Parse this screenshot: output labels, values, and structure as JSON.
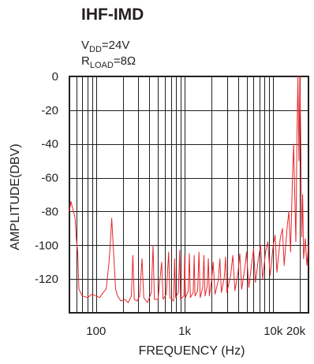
{
  "chart_data": {
    "type": "line",
    "title": "IHF-IMD",
    "conditions": {
      "vdd_main": "V",
      "vdd_sub": "DD",
      "vdd_value": "=24V",
      "rload_main": "R",
      "rload_sub": "LOAD",
      "rload_value": "=8Ω"
    },
    "xlabel": "FREQUENCY (Hz)",
    "ylabel": "AMPLITUDE(DBV)",
    "x_scale": "log",
    "xlim": [
      50,
      25000
    ],
    "ylim": [
      -140,
      0
    ],
    "x_ticks": [
      {
        "value": 100,
        "label": "100"
      },
      {
        "value": 1000,
        "label": "1k"
      },
      {
        "value": 10000,
        "label": "10k"
      },
      {
        "value": 20000,
        "label": "20k"
      }
    ],
    "y_ticks": [
      {
        "value": 0,
        "label": "0"
      },
      {
        "value": -20,
        "label": "-20"
      },
      {
        "value": -40,
        "label": "-40"
      },
      {
        "value": -60,
        "label": "-60"
      },
      {
        "value": -80,
        "label": "-80"
      },
      {
        "value": -100,
        "label": "-100"
      },
      {
        "value": -120,
        "label": "-120"
      }
    ],
    "grid": true,
    "line_color": "#e8262b",
    "series": [
      {
        "values": [
          [
            50,
            -80
          ],
          [
            52,
            -74
          ],
          [
            55,
            -79
          ],
          [
            58,
            -84
          ],
          [
            60,
            -97
          ],
          [
            62,
            -104
          ],
          [
            64,
            -126
          ],
          [
            70,
            -130
          ],
          [
            80,
            -131
          ],
          [
            90,
            -129
          ],
          [
            100,
            -130
          ],
          [
            110,
            -131
          ],
          [
            120,
            -128
          ],
          [
            130,
            -126
          ],
          [
            140,
            -110
          ],
          [
            145,
            -98
          ],
          [
            150,
            -84
          ],
          [
            155,
            -98
          ],
          [
            160,
            -110
          ],
          [
            166,
            -126
          ],
          [
            175,
            -130
          ],
          [
            190,
            -133
          ],
          [
            210,
            -132
          ],
          [
            230,
            -134
          ],
          [
            250,
            -130
          ],
          [
            260,
            -106
          ],
          [
            270,
            -132
          ],
          [
            290,
            -133
          ],
          [
            310,
            -130
          ],
          [
            330,
            -108
          ],
          [
            345,
            -131
          ],
          [
            380,
            -134
          ],
          [
            420,
            -128
          ],
          [
            440,
            -100
          ],
          [
            455,
            -132
          ],
          [
            500,
            -132
          ],
          [
            550,
            -110
          ],
          [
            570,
            -132
          ],
          [
            620,
            -129
          ],
          [
            660,
            -104
          ],
          [
            680,
            -131
          ],
          [
            750,
            -133
          ],
          [
            770,
            -108
          ],
          [
            790,
            -131
          ],
          [
            850,
            -128
          ],
          [
            880,
            -103
          ],
          [
            900,
            -132
          ],
          [
            980,
            -130
          ],
          [
            1000,
            -106
          ],
          [
            1020,
            -131
          ],
          [
            1100,
            -127
          ],
          [
            1130,
            -105
          ],
          [
            1160,
            -131
          ],
          [
            1250,
            -128
          ],
          [
            1280,
            -106
          ],
          [
            1310,
            -130
          ],
          [
            1400,
            -127
          ],
          [
            1450,
            -104
          ],
          [
            1500,
            -131
          ],
          [
            1600,
            -125
          ],
          [
            1650,
            -106
          ],
          [
            1700,
            -130
          ],
          [
            1800,
            -124
          ],
          [
            1850,
            -108
          ],
          [
            1900,
            -130
          ],
          [
            2000,
            -122
          ],
          [
            2100,
            -110
          ],
          [
            2200,
            -129
          ],
          [
            2400,
            -121
          ],
          [
            2500,
            -108
          ],
          [
            2600,
            -128
          ],
          [
            2800,
            -119
          ],
          [
            2900,
            -107
          ],
          [
            3000,
            -128
          ],
          [
            3300,
            -118
          ],
          [
            3500,
            -106
          ],
          [
            3700,
            -127
          ],
          [
            4000,
            -116
          ],
          [
            4200,
            -105
          ],
          [
            4400,
            -126
          ],
          [
            4800,
            -113
          ],
          [
            5000,
            -104
          ],
          [
            5300,
            -125
          ],
          [
            5700,
            -111
          ],
          [
            6000,
            -102
          ],
          [
            6300,
            -122
          ],
          [
            6800,
            -108
          ],
          [
            7200,
            -100
          ],
          [
            7600,
            -120
          ],
          [
            8200,
            -104
          ],
          [
            8700,
            -98
          ],
          [
            9200,
            -118
          ],
          [
            10000,
            -100
          ],
          [
            10500,
            -94
          ],
          [
            11000,
            -116
          ],
          [
            12000,
            -96
          ],
          [
            12700,
            -90
          ],
          [
            13300,
            -112
          ],
          [
            14300,
            -90
          ],
          [
            15000,
            -80
          ],
          [
            15700,
            -104
          ],
          [
            16500,
            -60
          ],
          [
            17000,
            -40
          ],
          [
            17500,
            -70
          ],
          [
            18000,
            -98
          ],
          [
            18500,
            -40
          ],
          [
            19000,
            0
          ],
          [
            19500,
            -50
          ],
          [
            20000,
            0
          ],
          [
            20500,
            -40
          ],
          [
            21000,
            -95
          ],
          [
            21500,
            -70
          ],
          [
            22000,
            -108
          ],
          [
            23000,
            -96
          ],
          [
            24000,
            -112
          ],
          [
            25000,
            -100
          ]
        ]
      }
    ]
  }
}
